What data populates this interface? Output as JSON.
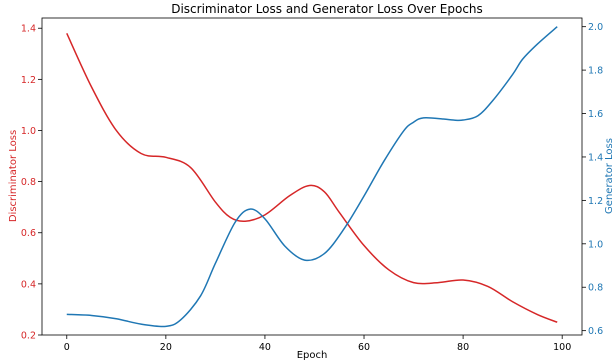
{
  "chart_data": {
    "type": "line",
    "title": "Discriminator Loss and Generator Loss Over Epochs",
    "xlabel": "Epoch",
    "y_left_label": "Discriminator Loss",
    "y_right_label": "Generator Loss",
    "xlim": [
      -5,
      104
    ],
    "y_left_lim": [
      0.2,
      1.44
    ],
    "y_right_lim": [
      0.58,
      2.04
    ],
    "x_ticks": [
      0,
      20,
      40,
      60,
      80,
      100
    ],
    "y_left_ticks": [
      0.2,
      0.4,
      0.6,
      0.8,
      1.0,
      1.2,
      1.4
    ],
    "y_left_tick_labels": [
      "0.2",
      "0.4",
      "0.6",
      "0.8",
      "1.0",
      "1.2",
      "1.4"
    ],
    "y_right_ticks": [
      0.6,
      0.8,
      1.0,
      1.2,
      1.4,
      1.6,
      1.8,
      2.0
    ],
    "y_right_tick_labels": [
      "0.6",
      "0.8",
      "1.0",
      "1.2",
      "1.4",
      "1.6",
      "1.8",
      "2.0"
    ],
    "grid": false,
    "colors": {
      "left": "#d62728",
      "right": "#1f77b4"
    },
    "series": [
      {
        "axis": "left",
        "color": "#d62728",
        "x": [
          0,
          5,
          10,
          15,
          20,
          25,
          30,
          33,
          36,
          40,
          45,
          49,
          52,
          55,
          60,
          65,
          70,
          75,
          80,
          85,
          90,
          95,
          99
        ],
        "values": [
          1.38,
          1.17,
          1.0,
          0.91,
          0.895,
          0.855,
          0.72,
          0.66,
          0.645,
          0.67,
          0.745,
          0.785,
          0.76,
          0.68,
          0.55,
          0.455,
          0.405,
          0.405,
          0.415,
          0.39,
          0.33,
          0.28,
          0.25
        ]
      },
      {
        "axis": "right",
        "color": "#1f77b4",
        "x": [
          0,
          5,
          10,
          15,
          20,
          23,
          27,
          30,
          34,
          37,
          40,
          44,
          48,
          52,
          56,
          60,
          64,
          68,
          70,
          72,
          76,
          78,
          80,
          83,
          86,
          90,
          92,
          95,
          99
        ],
        "values": [
          0.675,
          0.67,
          0.655,
          0.63,
          0.62,
          0.65,
          0.76,
          0.91,
          1.1,
          1.16,
          1.115,
          0.99,
          0.925,
          0.955,
          1.07,
          1.22,
          1.38,
          1.52,
          1.56,
          1.58,
          1.575,
          1.57,
          1.57,
          1.59,
          1.66,
          1.78,
          1.85,
          1.92,
          2.0
        ]
      }
    ]
  }
}
